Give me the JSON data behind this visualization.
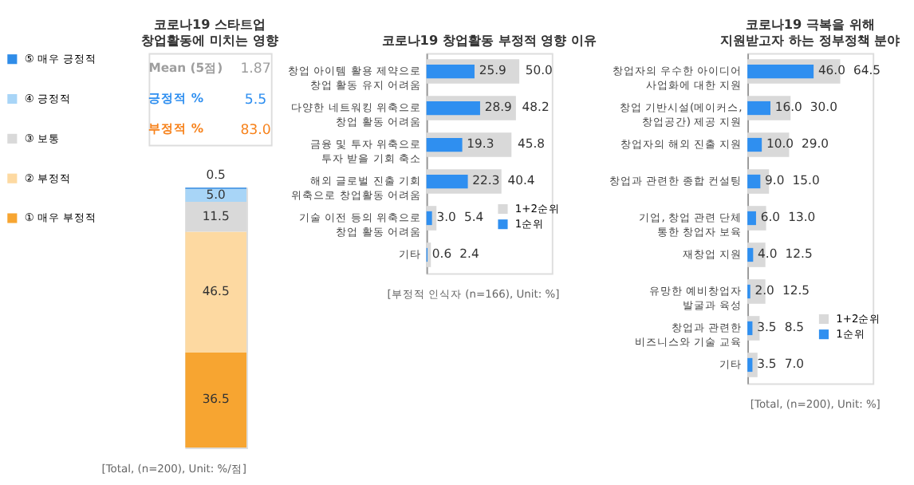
{
  "chart_data": [
    {
      "type": "bar",
      "title": "코로나19 스타트업\n창업활동에 미치는 영향",
      "categories": [
        null
      ],
      "stacked": true,
      "data_labels": true,
      "legend": "left",
      "series": [
        {
          "name": "① 매우 부정적",
          "color": "#f7a531",
          "values": [
            36.5
          ],
          "value_labels": [
            "36.5"
          ]
        },
        {
          "name": "② 부정적",
          "color": "#fdd9a1",
          "values": [
            46.5
          ],
          "value_labels": [
            "46.5"
          ]
        },
        {
          "name": "③ 보통",
          "color": "#d9d9d9",
          "values": [
            11.5
          ],
          "value_labels": [
            "11.5"
          ]
        },
        {
          "name": "④ 긍정적",
          "color": "#a8d5f7",
          "values": [
            5.0
          ],
          "value_labels": [
            "5.0"
          ]
        },
        {
          "name": "⑤ 매우 긍정적",
          "color": "#2f8ce8",
          "values": [
            0.5
          ],
          "value_labels": [
            "0.5"
          ]
        }
      ],
      "annotations": [
        "Mean (5점)",
        "1.87",
        "긍정적 %",
        "5.5",
        "부정적 %",
        "83.0",
        "[Total, (n=200), Unit: %/점]"
      ]
    },
    {
      "type": "bar",
      "orientation": "horizontal",
      "title": "코로나19 창업활동 부정적 영향 이유",
      "data_labels": true,
      "legend": "bottom right",
      "categories": [
        "창업 아이템 활용 제약으로\n창업 활동 유지 어려움",
        "다양한 네트워킹 위축으로\n창업 활동 어려움",
        "금융 및 투자 위축으로\n투자 받을 기회 축소",
        "해외 글로벌 진출 기회\n위축으로 창업활동 어려움",
        "기술 이전 등의 위축으로\n창업 활동 어려움",
        "기타"
      ],
      "series": [
        {
          "name": "1+2순위",
          "color": "#d9d9d9",
          "values": [
            50.0,
            48.2,
            45.8,
            40.4,
            5.4,
            2.4
          ],
          "value_labels": [
            "50.0",
            "48.2",
            "45.8",
            "40.4",
            "5.4",
            "2.4"
          ]
        },
        {
          "name": "1순위",
          "color": "#2f8ff0",
          "values": [
            25.9,
            28.9,
            19.3,
            22.3,
            3.0,
            0.6
          ],
          "value_labels": [
            "25.9",
            "28.9",
            "19.3",
            "22.3",
            "3.0",
            "0.6"
          ]
        }
      ],
      "annotations": [
        "[부정적 인식자 (n=166), Unit: %]"
      ]
    },
    {
      "type": "bar",
      "orientation": "horizontal",
      "title": "코로나19 극복을 위해\n지원받고자 하는 정부정책 분야",
      "data_labels": true,
      "legend": "bottom right",
      "categories": [
        "창업자의 우수한 아이디어\n사업화에 대한 지원",
        "창업 기반시설(메이커스,\n창업공간) 제공 지원",
        "창업자의 해외 진출 지원",
        "창업과 관련한 종합 컨설팅",
        "기업, 창업 관련 단체\n통한 창업자 보육",
        "재창업 지원",
        "유망한 예비창업자\n발굴과 육성",
        "창업과 관련한\n비즈니스와 기술 교육",
        "기타"
      ],
      "series": [
        {
          "name": "1+2순위",
          "color": "#d9d9d9",
          "values": [
            64.5,
            30.0,
            29.0,
            15.0,
            13.0,
            12.5,
            12.5,
            8.5,
            7.0
          ],
          "value_labels": [
            "64.5",
            "30.0",
            "29.0",
            "15.0",
            "13.0",
            "12.5",
            "12.5",
            "8.5",
            "7.0"
          ]
        },
        {
          "name": "1순위",
          "color": "#2f8ff0",
          "values": [
            46.0,
            16.0,
            10.0,
            9.0,
            6.0,
            4.0,
            2.0,
            3.5,
            3.5
          ],
          "value_labels": [
            "46.0",
            "16.0",
            "10.0",
            "9.0",
            "6.0",
            "4.0",
            "2.0",
            "3.5",
            "3.5"
          ]
        }
      ],
      "annotations": [
        "[Total, (n=200), Unit: %]"
      ]
    }
  ]
}
